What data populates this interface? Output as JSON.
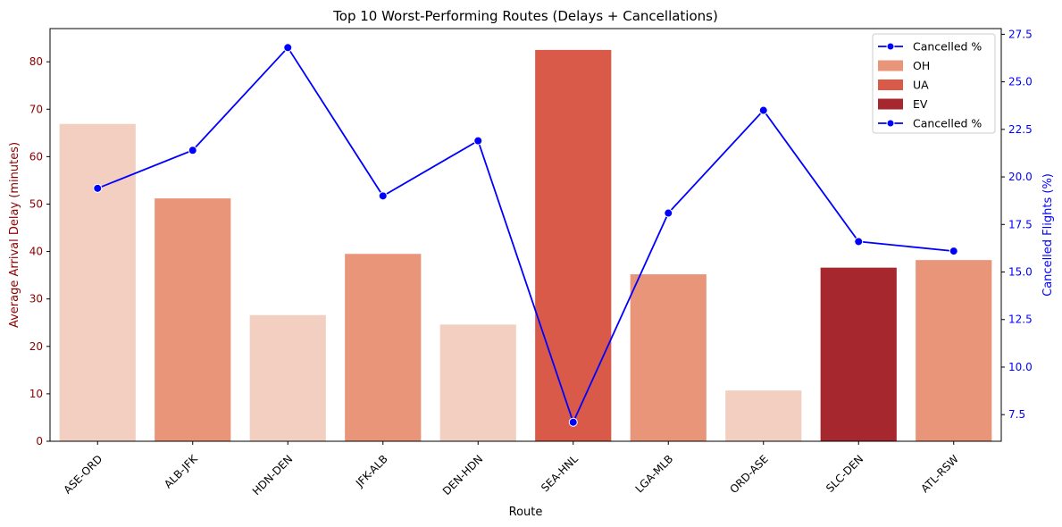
{
  "chart_data": {
    "type": "bar+line",
    "title": "Top 10 Worst-Performing Routes (Delays + Cancellations)",
    "xlabel": "Route",
    "ylabel_left": "Average Arrival Delay (minutes)",
    "ylabel_right": "Cancelled Flights (%)",
    "categories": [
      "ASE-ORD",
      "ALB-JFK",
      "HDN-DEN",
      "JFK-ALB",
      "DEN-HDN",
      "SEA-HNL",
      "LGA-MLB",
      "ORD-ASE",
      "SLC-DEN",
      "ATL-RSW"
    ],
    "bar_series": {
      "values": [
        66.9,
        51.2,
        26.6,
        39.5,
        24.6,
        82.5,
        35.2,
        10.7,
        36.6,
        38.2
      ],
      "colors": [
        "#f3cfc1",
        "#e9957a",
        "#f3cfc1",
        "#e9957a",
        "#f3cfc1",
        "#da5a4a",
        "#e9957a",
        "#f3cfc1",
        "#a6272e",
        "#e9957a"
      ]
    },
    "line_series": {
      "name": "Cancelled %",
      "values": [
        19.4,
        21.4,
        26.8,
        19.0,
        21.9,
        7.1,
        18.1,
        23.5,
        16.6,
        16.1
      ],
      "color": "#0000ff"
    },
    "ylim_left": [
      0,
      87
    ],
    "ylim_right": [
      6.1,
      27.8
    ],
    "yticks_left": [
      "0",
      "10",
      "20",
      "30",
      "40",
      "50",
      "60",
      "70",
      "80"
    ],
    "yticks_right": [
      "7.5",
      "10.0",
      "12.5",
      "15.0",
      "17.5",
      "20.0",
      "22.5",
      "25.0",
      "27.5"
    ],
    "left_axis_color": "#8b0000",
    "right_axis_color": "#0000ff",
    "grid": false,
    "legend_position": "top-right",
    "legend": [
      {
        "kind": "line",
        "label": "Cancelled %",
        "color": "#0000ff"
      },
      {
        "kind": "patch",
        "label": "OH",
        "color": "#e9957a"
      },
      {
        "kind": "patch",
        "label": "UA",
        "color": "#da5a4a"
      },
      {
        "kind": "patch",
        "label": "EV",
        "color": "#a6272e"
      },
      {
        "kind": "line",
        "label": "Cancelled %",
        "color": "#0000ff"
      }
    ]
  }
}
